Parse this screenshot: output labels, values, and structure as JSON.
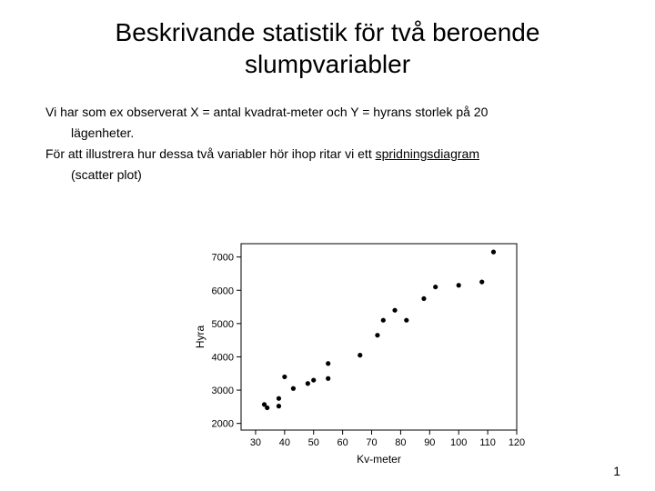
{
  "title": "Beskrivande statistik för två beroende slumpvariabler",
  "para1": "Vi har som ex observerat X = antal kvadrat-meter och Y = hyrans storlek på 20",
  "para1b": "lägenheter.",
  "para2a": "För att illustrera hur dessa två variabler hör ihop ritar vi ett ",
  "para2u": "spridningsdiagram",
  "para3": "(scatter plot)",
  "page_number": "1",
  "chart": {
    "type": "scatter",
    "xlabel": "Kv-meter",
    "ylabel": "Hyra",
    "xlim": [
      25,
      120
    ],
    "ylim": [
      1800,
      7400
    ],
    "xticks": [
      30,
      40,
      50,
      60,
      70,
      80,
      90,
      100,
      110,
      120
    ],
    "yticks": [
      2000,
      3000,
      4000,
      5000,
      6000,
      7000
    ],
    "background_color": "#ffffff",
    "axis_color": "#000000",
    "tick_color": "#000000",
    "label_color": "#000000",
    "label_fontsize": 12,
    "tick_fontsize": 11,
    "marker_color": "#000000",
    "marker_radius": 2.6,
    "points": [
      {
        "x": 33,
        "y": 2570
      },
      {
        "x": 34,
        "y": 2470
      },
      {
        "x": 38,
        "y": 2520
      },
      {
        "x": 38,
        "y": 2750
      },
      {
        "x": 40,
        "y": 3400
      },
      {
        "x": 43,
        "y": 3050
      },
      {
        "x": 48,
        "y": 3200
      },
      {
        "x": 50,
        "y": 3300
      },
      {
        "x": 55,
        "y": 3350
      },
      {
        "x": 55,
        "y": 3800
      },
      {
        "x": 66,
        "y": 4050
      },
      {
        "x": 72,
        "y": 4650
      },
      {
        "x": 74,
        "y": 5100
      },
      {
        "x": 78,
        "y": 5400
      },
      {
        "x": 82,
        "y": 5100
      },
      {
        "x": 88,
        "y": 5750
      },
      {
        "x": 92,
        "y": 6100
      },
      {
        "x": 100,
        "y": 6150
      },
      {
        "x": 108,
        "y": 6250
      },
      {
        "x": 112,
        "y": 7150
      }
    ]
  }
}
